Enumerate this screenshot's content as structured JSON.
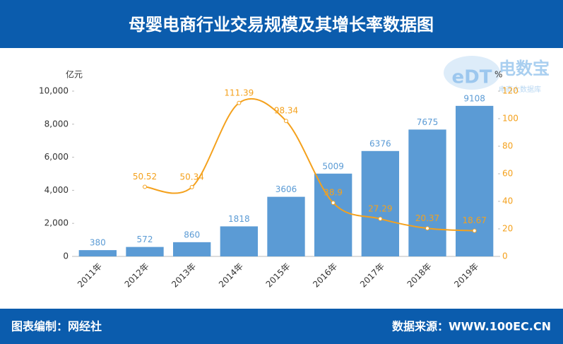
{
  "header": {
    "title": "母婴电商行业交易规模及其增长率数据图"
  },
  "watermark": {
    "logo": "eDT",
    "name": "电数宝",
    "tagline": "电商大数据库"
  },
  "chart_data": {
    "type": "bar",
    "y_label": "亿元",
    "y2_label": "%",
    "categories": [
      "2011年",
      "2012年",
      "2013年",
      "2014年",
      "2015年",
      "2016年",
      "2017年",
      "2018年",
      "2019年"
    ],
    "series": [
      {
        "type": "bar",
        "axis": "y",
        "color": "#5b9bd5",
        "values": [
          380,
          572,
          860,
          1818,
          3606,
          5009,
          6376,
          7675,
          9108
        ]
      },
      {
        "type": "line",
        "axis": "y2",
        "color": "#f4a11d",
        "values": [
          null,
          50.52,
          50.34,
          111.39,
          98.34,
          38.9,
          27.29,
          20.37,
          18.67
        ]
      }
    ],
    "ylim": [
      0,
      10000
    ],
    "yticks": [
      0,
      {
        "value": 2000,
        "label": "2,000"
      },
      {
        "value": 4000,
        "label": "4,000"
      },
      {
        "value": 6000,
        "label": "6,000"
      },
      {
        "value": 8000,
        "label": "8,000"
      },
      {
        "value": 10000,
        "label": "10,000"
      }
    ],
    "y2lim": [
      0,
      120
    ],
    "y2ticks": [
      0,
      20,
      40,
      60,
      80,
      100,
      120
    ]
  },
  "footer": {
    "left": "图表编制：网经社",
    "right": "数据来源：WWW.100EC.CN"
  }
}
